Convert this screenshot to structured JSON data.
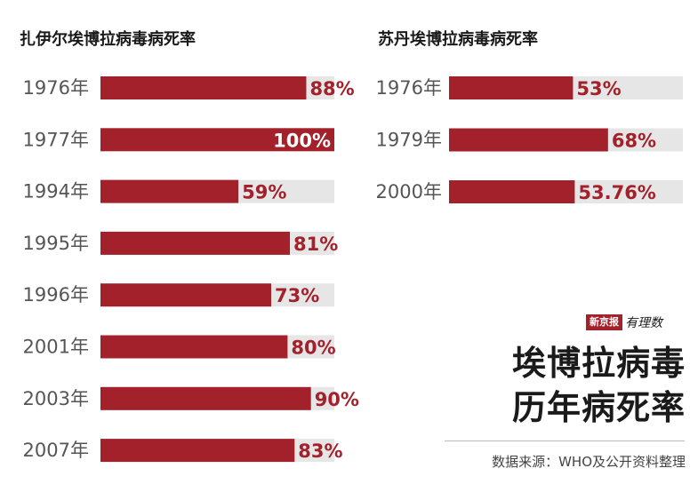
{
  "chart_data": [
    {
      "type": "bar",
      "orientation": "horizontal",
      "title": "扎伊尔埃博拉病毒病死率",
      "categories": [
        "1976年",
        "1977年",
        "1994年",
        "1995年",
        "1996年",
        "2001年",
        "2003年",
        "2007年"
      ],
      "values": [
        88,
        100,
        59,
        81,
        73,
        80,
        90,
        83
      ],
      "labels": [
        "88%",
        "100%",
        "59%",
        "81%",
        "73%",
        "80%",
        "90%",
        "83%"
      ],
      "xlim": [
        0,
        100
      ],
      "unit": "%",
      "grid": false
    },
    {
      "type": "bar",
      "orientation": "horizontal",
      "title": "苏丹埃博拉病毒病死率",
      "categories": [
        "1976年",
        "1979年",
        "2000年"
      ],
      "values": [
        53,
        68,
        53.76
      ],
      "labels": [
        "53%",
        "68%",
        "53.76%"
      ],
      "xlim": [
        0,
        100
      ],
      "unit": "%",
      "grid": false
    }
  ],
  "colors": {
    "bar": "#a3212b",
    "track": "#e6e6e6",
    "year_text": "#555555"
  },
  "logo": {
    "box_text": "新京报",
    "script_text": "有理数"
  },
  "headline": {
    "line1": "埃博拉病毒",
    "line2": "历年病死率"
  },
  "source": "数据来源：WHO及公开资料整理"
}
